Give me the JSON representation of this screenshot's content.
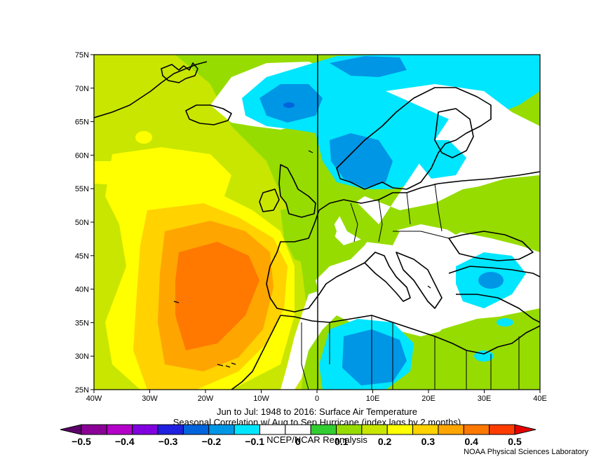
{
  "map": {
    "lon_labels": [
      "40W",
      "30W",
      "20W",
      "10W",
      "0",
      "10E",
      "20E",
      "30E",
      "40E"
    ],
    "lat_labels": [
      "75N",
      "70N",
      "65N",
      "60N",
      "55N",
      "50N",
      "45N",
      "40N",
      "35N",
      "30N",
      "25N"
    ]
  },
  "title": {
    "line1": "Jun to Jul: 1948 to 2016: Surface Air Temperature",
    "line2": "Seasonal Correlation w/ Aug to Sep Hurricane (index lags by 2 months)",
    "line3": "NCEP/NCAR Reanalysis"
  },
  "colorbar": {
    "labels": [
      "−0.5",
      "−0.4",
      "−0.3",
      "−0.2",
      "−0.1",
      "0",
      "0.1",
      "0.2",
      "0.3",
      "0.4",
      "0.5"
    ],
    "colors": [
      "#5a0068",
      "#8a0096",
      "#b400c8",
      "#8000e0",
      "#2020e0",
      "#0064dc",
      "#0096e6",
      "#00e6ff",
      "#ffffff",
      "#ffffff",
      "#32cd32",
      "#96dc00",
      "#c8e600",
      "#ffff00",
      "#ffd200",
      "#ffa500",
      "#ff7800",
      "#ff3c00",
      "#e60000"
    ]
  },
  "credit": "NOAA Physical Sciences Laboratory"
}
